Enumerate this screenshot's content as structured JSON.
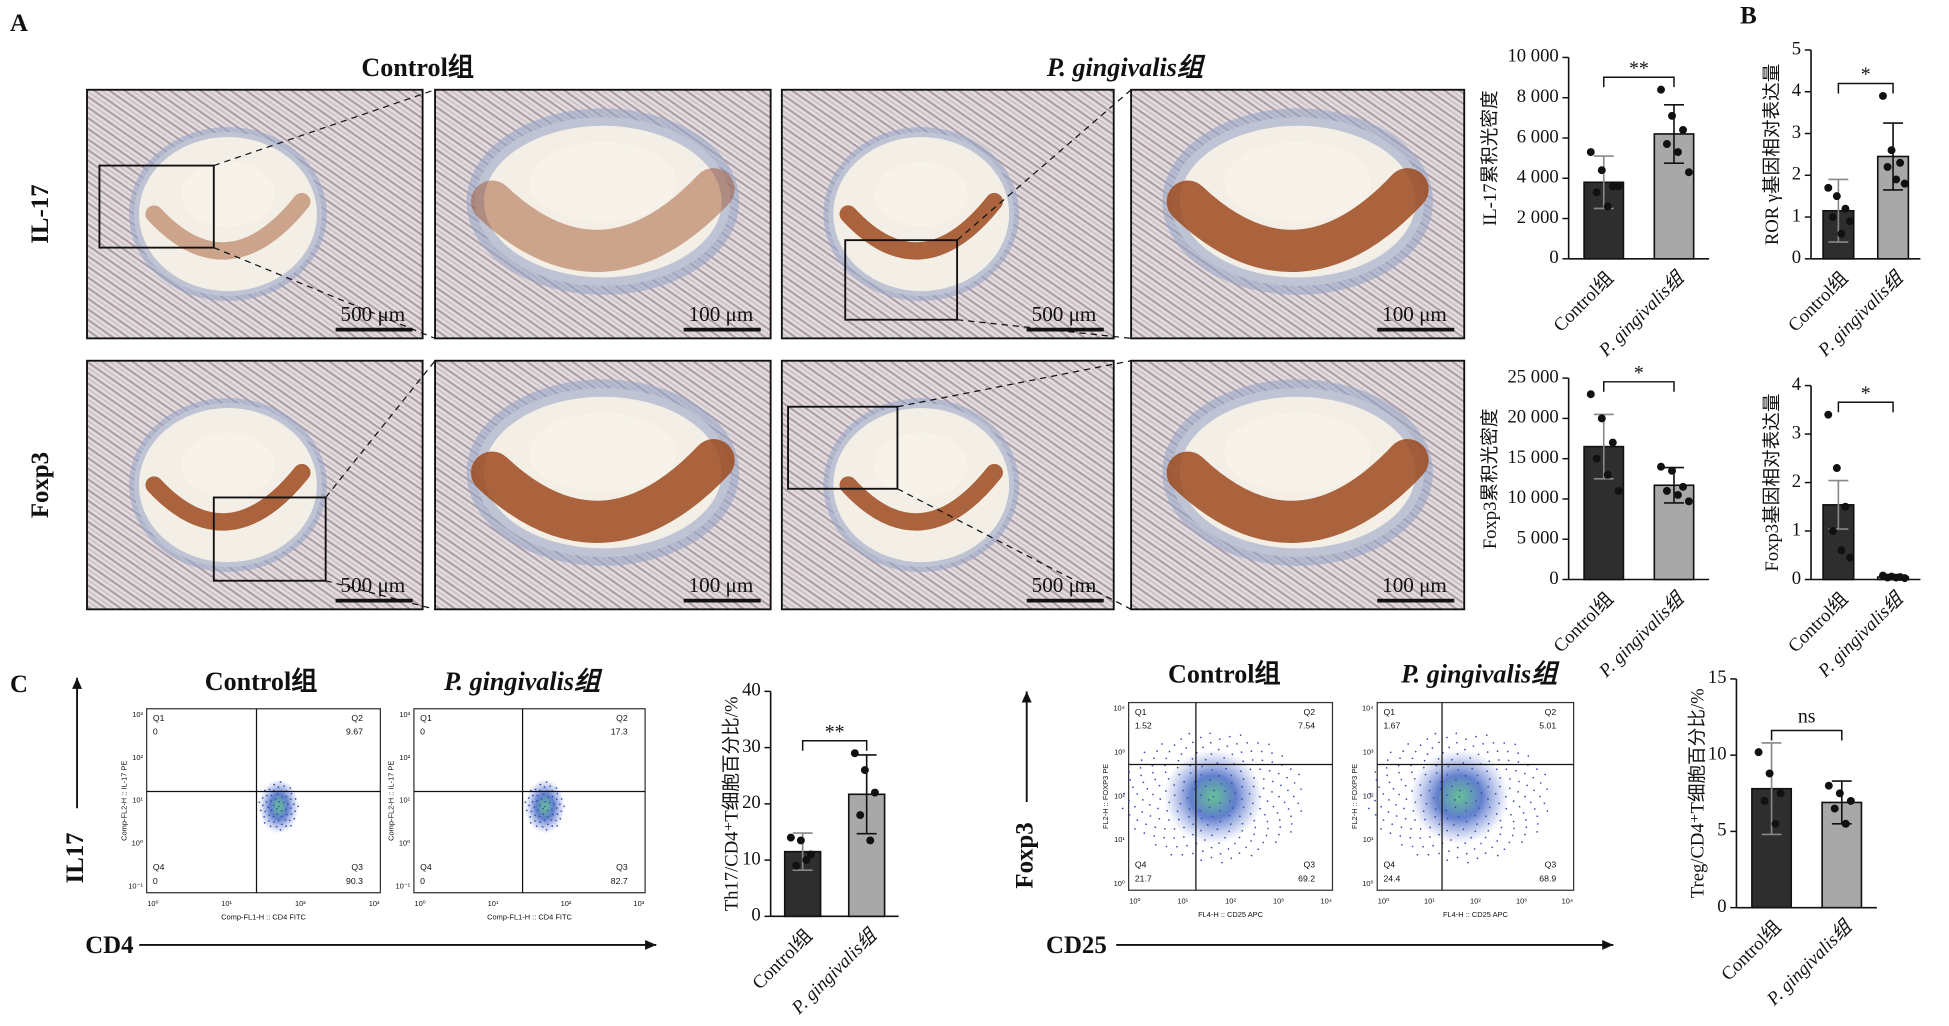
{
  "panel_labels": [
    "A",
    "B",
    "C"
  ],
  "micrographs": {
    "column_titles": [
      "Control组",
      "P. gingivalis组"
    ],
    "row_labels": [
      "IL-17",
      "Foxp3"
    ],
    "scale_bars": [
      "500 μm",
      "100 μm",
      "500 μm",
      "100 μm",
      "500 μm",
      "100 μm",
      "500 μm",
      "100 μm"
    ]
  },
  "flow": [
    {
      "titles": [
        "Control组",
        "P. gingivalis组"
      ],
      "x_arrow": "CD4",
      "y_arrow": "IL17",
      "x_channel": "Comp-FL1-H :: CD4 FITC",
      "y_channel": "Comp-FL2-H :: IL-17 PE",
      "xticks": [
        "10⁰",
        "10¹",
        "10²",
        "10³"
      ],
      "yticks": [
        "10⁻¹",
        "10⁰",
        "10¹",
        "10²",
        "10³"
      ],
      "plots": [
        {
          "quadrant_names": [
            "Q1",
            "Q2",
            "Q3",
            "Q4"
          ],
          "quadrant_values": [
            "0",
            "9.67",
            "90.3",
            "0"
          ]
        },
        {
          "quadrant_names": [
            "Q1",
            "Q2",
            "Q3",
            "Q4"
          ],
          "quadrant_values": [
            "0",
            "17.3",
            "82.7",
            "0"
          ]
        }
      ]
    },
    {
      "titles": [
        "Control组",
        "P. gingivalis组"
      ],
      "x_arrow": "CD25",
      "y_arrow": "Foxp3",
      "x_channel": "FL4-H :: CD25 APC",
      "y_channel": "FL2-H :: FOXP3 PE",
      "xticks": [
        "10⁰",
        "10¹",
        "10²",
        "10³",
        "10⁴"
      ],
      "yticks": [
        "10⁰",
        "10¹",
        "10²",
        "10³",
        "10⁴"
      ],
      "plots": [
        {
          "quadrant_names": [
            "Q1",
            "Q2",
            "Q3",
            "Q4"
          ],
          "quadrant_values": [
            "1.52",
            "7.54",
            "69.2",
            "21.7"
          ]
        },
        {
          "quadrant_names": [
            "Q1",
            "Q2",
            "Q3",
            "Q4"
          ],
          "quadrant_values": [
            "1.67",
            "5.01",
            "68.9",
            "24.4"
          ]
        }
      ]
    }
  ],
  "chart_data": [
    {
      "type": "bar",
      "ylabel": "IL-17累积光密度",
      "categories": [
        "Control组",
        "P. gingivalis组"
      ],
      "colors": [
        "#2e2e2e",
        "#a8a8a8"
      ],
      "values": [
        3800,
        6200
      ],
      "errors": [
        1300,
        1450
      ],
      "points": [
        [
          5300,
          4400,
          3600,
          3300,
          2600,
          3600
        ],
        [
          8400,
          7100,
          6400,
          5700,
          5300,
          4300
        ]
      ],
      "significance": "**",
      "ylim": [
        0,
        10000
      ],
      "yticks": [
        0,
        {
          "value": 2000,
          "label": "2 000"
        },
        {
          "value": 4000,
          "label": "4 000"
        },
        {
          "value": 6000,
          "label": "6 000"
        },
        {
          "value": 8000,
          "label": "8 000"
        },
        {
          "value": 10000,
          "label": "10 000"
        }
      ]
    },
    {
      "type": "bar",
      "ylabel": "ROR γ基因相对表达量",
      "categories": [
        "Control组",
        "P. gingivalis组"
      ],
      "colors": [
        "#2e2e2e",
        "#a8a8a8"
      ],
      "values": [
        1.15,
        2.45
      ],
      "errors": [
        0.75,
        0.8
      ],
      "points": [
        [
          1.7,
          1.5,
          1.2,
          1.0,
          0.6,
          0.9
        ],
        [
          3.9,
          2.6,
          2.3,
          2.2,
          1.9,
          1.8
        ]
      ],
      "significance": "*",
      "ylim": [
        0,
        5
      ],
      "yticks": [
        0,
        1,
        2,
        3,
        4,
        5
      ]
    },
    {
      "type": "bar",
      "ylabel": "Foxp3累积光密度",
      "categories": [
        "Control组",
        "P. gingivalis组"
      ],
      "colors": [
        "#2e2e2e",
        "#a8a8a8"
      ],
      "values": [
        16500,
        11700
      ],
      "errors": [
        4000,
        2200
      ],
      "points": [
        [
          23000,
          20000,
          17000,
          15000,
          13000,
          11000
        ],
        [
          14000,
          13500,
          11500,
          11000,
          10500,
          9700
        ]
      ],
      "significance": "*",
      "ylim": [
        0,
        25000
      ],
      "yticks": [
        0,
        {
          "value": 5000,
          "label": "5 000"
        },
        {
          "value": 10000,
          "label": "10 000"
        },
        {
          "value": 15000,
          "label": "15 000"
        },
        {
          "value": 20000,
          "label": "20 000"
        },
        {
          "value": 25000,
          "label": "25 000"
        }
      ]
    },
    {
      "type": "bar",
      "ylabel": "Foxp3基因相对表达量",
      "categories": [
        "Control组",
        "P. gingivalis组"
      ],
      "colors": [
        "#2e2e2e",
        "#a8a8a8"
      ],
      "values": [
        1.54,
        0.05
      ],
      "errors": [
        0.5,
        0.02
      ],
      "points": [
        [
          3.4,
          2.3,
          1.5,
          1.0,
          0.6,
          0.45
        ],
        [
          0.08,
          0.06,
          0.05,
          0.04,
          0.04,
          0.03
        ]
      ],
      "significance": "*",
      "ylim": [
        0,
        4
      ],
      "yticks": [
        0,
        1,
        2,
        3,
        4
      ]
    },
    {
      "type": "bar",
      "ylabel": "Th17/CD4⁺T细胞百分比/%",
      "categories": [
        "Control组",
        "P. gingivalis组"
      ],
      "colors": [
        "#2e2e2e",
        "#a8a8a8"
      ],
      "values": [
        11.5,
        21.7
      ],
      "errors": [
        3.3,
        7
      ],
      "points": [
        [
          14,
          13.5,
          11,
          9,
          10
        ],
        [
          29,
          26,
          22,
          18,
          13.5
        ]
      ],
      "significance": "**",
      "ylim": [
        0,
        40
      ],
      "yticks": [
        0,
        10,
        20,
        30,
        40
      ]
    },
    {
      "type": "bar",
      "ylabel": "Treg/CD4⁺T细胞百分比/%",
      "categories": [
        "Control组",
        "P. gingivalis组"
      ],
      "colors": [
        "#2e2e2e",
        "#a8a8a8"
      ],
      "values": [
        7.8,
        6.9
      ],
      "errors": [
        3,
        1.4
      ],
      "points": [
        [
          10.2,
          8.8,
          7.5,
          7,
          5.5
        ],
        [
          8,
          7.5,
          7,
          6.5,
          5.5
        ]
      ],
      "significance": "ns",
      "ylim": [
        0,
        15
      ],
      "yticks": [
        0,
        5,
        10,
        15
      ]
    }
  ]
}
